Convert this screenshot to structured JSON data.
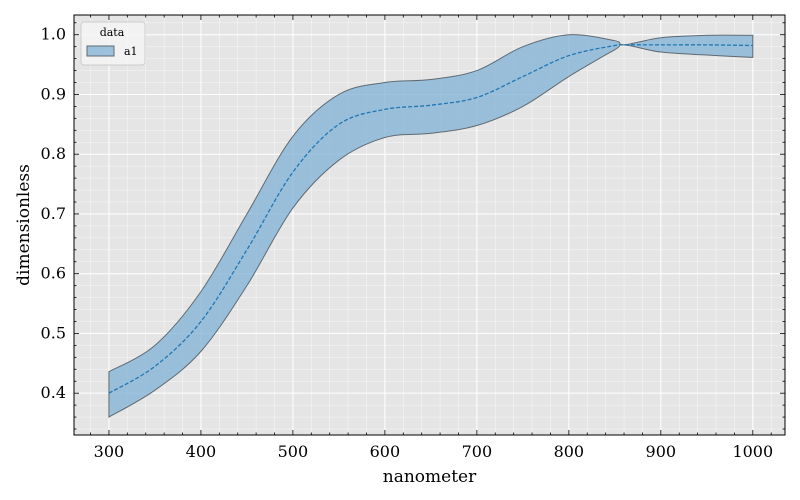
{
  "chart_data": {
    "type": "area",
    "xlabel": "nanometer",
    "ylabel": "dimensionless",
    "xlim": [
      262,
      1035
    ],
    "ylim": [
      0.33,
      1.033
    ],
    "xticks": [
      300,
      400,
      500,
      600,
      700,
      800,
      900,
      1000
    ],
    "yticks": [
      0.4,
      0.5,
      0.6,
      0.7,
      0.8,
      0.9,
      1.0
    ],
    "xtick_labels": [
      "300",
      "400",
      "500",
      "600",
      "700",
      "800",
      "900",
      "1000"
    ],
    "ytick_labels": [
      "0.4",
      "0.5",
      "0.6",
      "0.7",
      "0.8",
      "0.9",
      "1.0"
    ],
    "grid": true,
    "legend": {
      "title": "data",
      "placement": "top-left",
      "entries": [
        "a1"
      ]
    },
    "series": [
      {
        "name": "a1",
        "x": [
          300,
          350,
          400,
          450,
          500,
          550,
          600,
          650,
          700,
          750,
          800,
          850,
          860,
          900,
          950,
          1000
        ],
        "mean": [
          0.4,
          0.445,
          0.52,
          0.64,
          0.77,
          0.85,
          0.875,
          0.882,
          0.895,
          0.93,
          0.965,
          0.982,
          0.983,
          0.983,
          0.983,
          0.982
        ],
        "upper": [
          0.436,
          0.48,
          0.57,
          0.7,
          0.83,
          0.9,
          0.92,
          0.925,
          0.94,
          0.98,
          1.0,
          0.99,
          0.983,
          0.995,
          0.999,
          0.999
        ],
        "lower": [
          0.36,
          0.405,
          0.47,
          0.58,
          0.71,
          0.79,
          0.828,
          0.835,
          0.848,
          0.88,
          0.93,
          0.975,
          0.983,
          0.971,
          0.966,
          0.962
        ]
      }
    ],
    "colors": {
      "band_fill": "#7fb0d6",
      "band_edge": "#5f6a72",
      "line": "#1f77b4",
      "plot_bg": "#e5e5e5",
      "grid": "#ffffff"
    }
  }
}
